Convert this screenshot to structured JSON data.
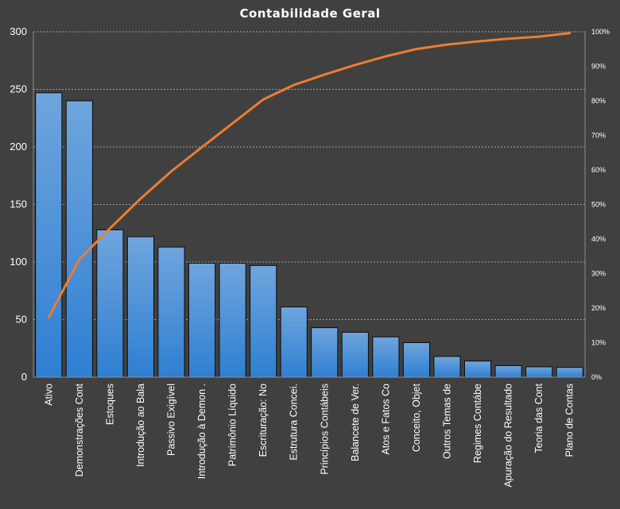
{
  "chart_data": {
    "type": "bar",
    "title": "Contabilidade  Geral",
    "categories": [
      "Ativo",
      "Demonstrações Cont",
      "Estoques",
      "Introdução  ao Bala",
      "Passivo Exigível",
      "Introdução  à Demon .",
      "Patrimônio  Líquido",
      "Escrituração: No",
      "Estrutura Concei.",
      "Princípios Contábeis",
      "Balancete de Ver.",
      "Atos e Fatos Co",
      "Conceito, Objet",
      "Outros Temas de",
      "Regimes Contábe",
      "Apuração do Resultado",
      "Teoria das Cont",
      "Plano de Contas"
    ],
    "series": [
      {
        "values": [
          247,
          240,
          128,
          122,
          113,
          99,
          99,
          97,
          61,
          43,
          39,
          35,
          30,
          18,
          14,
          10,
          9,
          8.5
        ]
      },
      {
        "values": [
          17.3,
          34.1,
          43.1,
          51.7,
          59.6,
          66.6,
          73.5,
          80.4,
          84.6,
          87.6,
          90.4,
          92.9,
          95.0,
          96.3,
          97.2,
          98.0,
          98.6,
          99.6
        ]
      }
    ],
    "ylim": [
      0,
      300
    ],
    "yticks": [
      0,
      50,
      100,
      150,
      200,
      250,
      300
    ],
    "y2lim": [
      0,
      100
    ],
    "y2ticks": [
      "0%",
      "10%",
      "20%",
      "30%",
      "40%",
      "50%",
      "60%",
      "70%",
      "80%",
      "90%",
      "100%"
    ],
    "grid": true,
    "colors": {
      "background": "#404040",
      "bar_fill_top": "#6fa5dd",
      "bar_fill_bottom": "#2f7fd2",
      "bar_stroke": "#0d0d0d",
      "line": "#ed7d31",
      "grid": "#bfbfbf",
      "text": "#ffffff"
    }
  }
}
